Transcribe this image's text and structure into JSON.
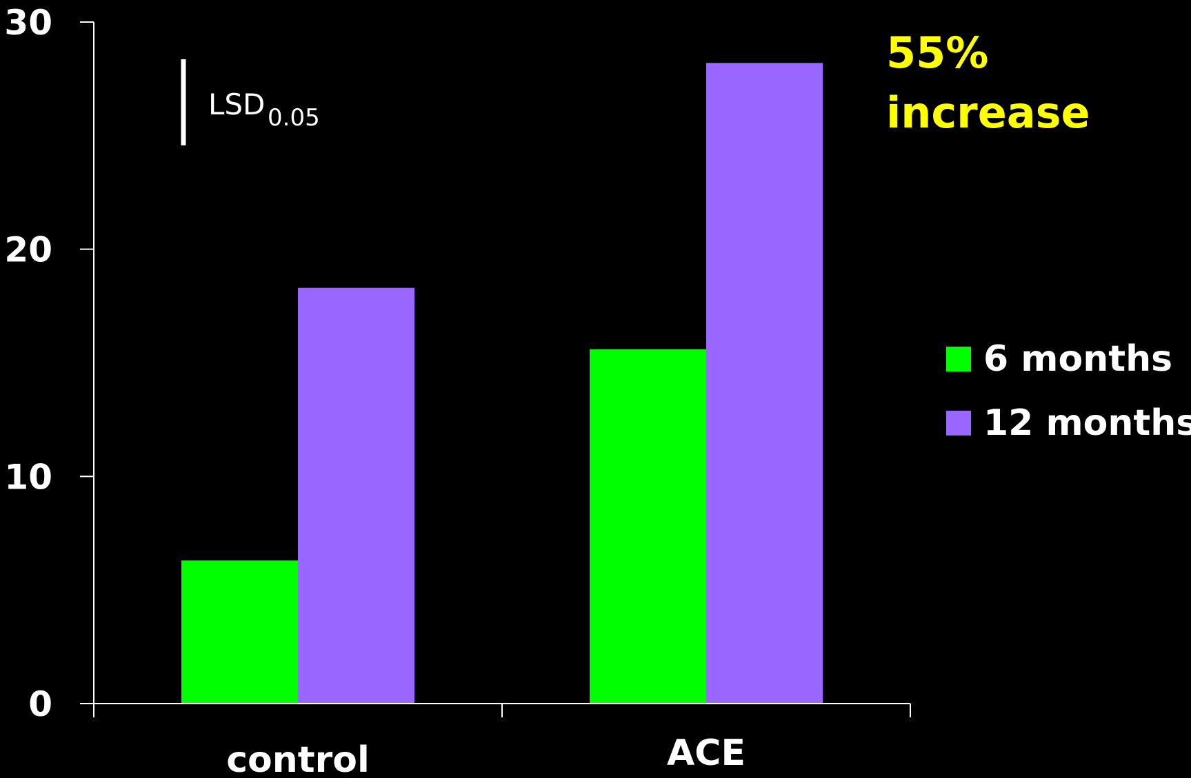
{
  "chart_data": {
    "type": "bar",
    "categories": [
      "control",
      "ACE"
    ],
    "series": [
      {
        "name": "6 months",
        "color": "#00ff00",
        "values": [
          6.3,
          15.6
        ]
      },
      {
        "name": "12 months",
        "color": "#9966ff",
        "values": [
          18.3,
          28.2
        ]
      }
    ],
    "ylim": [
      0,
      30
    ],
    "yticks": [
      0,
      10,
      20,
      30
    ],
    "ytick_labels": [
      "0",
      "10",
      "20",
      "30"
    ],
    "legend_placement": "right",
    "grid": false,
    "title": "",
    "xlabel": "",
    "ylabel": "",
    "background": "#000000",
    "annotations": {
      "increase_line1": "55%",
      "increase_line2": "increase",
      "increase_color": "#ffff00",
      "lsd_label": "LSD",
      "lsd_subscript": "0.05"
    }
  }
}
